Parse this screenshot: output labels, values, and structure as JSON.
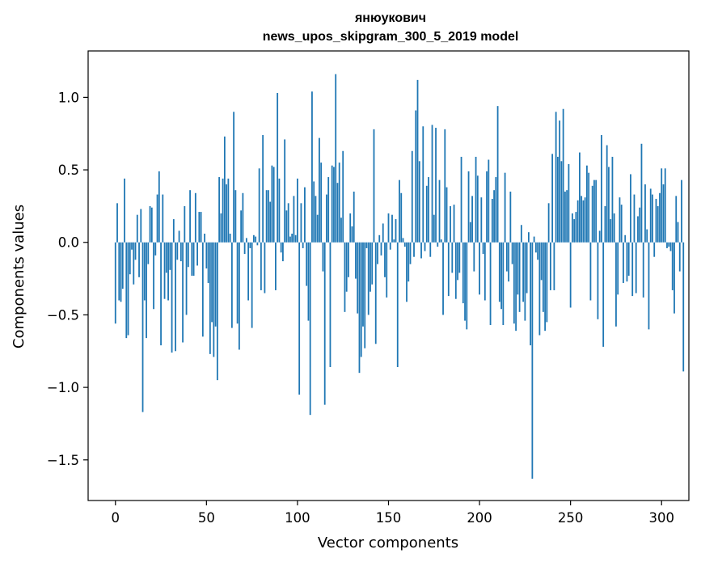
{
  "chart_data": {
    "type": "bar",
    "title": "янюукович",
    "subtitle": "news_upos_skipgram_300_5_2019 model",
    "xlabel": "Vector components",
    "ylabel": "Components values",
    "xlim": [
      -15,
      315
    ],
    "ylim": [
      -1.78,
      1.32
    ],
    "x_ticks": [
      0,
      50,
      100,
      150,
      200,
      250,
      300
    ],
    "x_tick_labels": [
      "0",
      "50",
      "100",
      "150",
      "200",
      "250",
      "300"
    ],
    "y_ticks": [
      -1.5,
      -1.0,
      -0.5,
      0.0,
      0.5,
      1.0
    ],
    "y_tick_labels": [
      "−1.5",
      "−1.0",
      "−0.5",
      "0.0",
      "0.5",
      "1.0"
    ],
    "grid": false,
    "legend": "none",
    "bar_color": "#1f77b4",
    "series": [
      {
        "values": [
          -0.56,
          0.27,
          -0.4,
          -0.41,
          -0.32,
          0.44,
          -0.66,
          -0.64,
          -0.22,
          -0.05,
          -0.29,
          -0.12,
          0.19,
          -0.24,
          0.23,
          -1.17,
          -0.4,
          -0.66,
          -0.15,
          0.25,
          0.24,
          -0.46,
          -0.09,
          0.33,
          0.49,
          -0.71,
          0.33,
          -0.39,
          -0.21,
          -0.4,
          -0.19,
          -0.76,
          0.16,
          -0.75,
          -0.12,
          0.08,
          -0.13,
          -0.69,
          0.25,
          -0.5,
          -0.17,
          0.36,
          -0.23,
          -0.23,
          0.34,
          -0.16,
          0.21,
          0.21,
          -0.65,
          0.06,
          -0.18,
          -0.28,
          -0.77,
          -0.55,
          -0.79,
          -0.58,
          -0.95,
          0.45,
          0.2,
          0.44,
          0.73,
          0.4,
          0.44,
          0.06,
          -0.59,
          0.9,
          0.36,
          -0.56,
          -0.74,
          0.22,
          0.34,
          -0.08,
          0.03,
          -0.4,
          -0.04,
          -0.59,
          0.05,
          0.04,
          -0.02,
          0.51,
          -0.33,
          0.74,
          -0.35,
          0.36,
          0.36,
          0.28,
          0.53,
          0.52,
          -0.33,
          1.03,
          0.44,
          -0.07,
          -0.13,
          0.71,
          0.22,
          0.27,
          0.04,
          0.06,
          0.32,
          0.05,
          0.44,
          -1.05,
          0.27,
          -0.04,
          0.38,
          -0.3,
          -0.54,
          -1.19,
          1.04,
          0.42,
          0.32,
          0.19,
          0.72,
          0.55,
          -0.2,
          -1.12,
          0.33,
          0.45,
          -0.86,
          0.53,
          0.52,
          1.16,
          0.41,
          0.55,
          0.17,
          0.63,
          -0.48,
          -0.34,
          -0.24,
          0.2,
          0.11,
          0.35,
          -0.25,
          -0.49,
          -0.9,
          -0.79,
          -0.58,
          -0.73,
          -0.04,
          -0.5,
          -0.34,
          -0.29,
          0.78,
          -0.7,
          -0.15,
          0.05,
          -0.09,
          0.13,
          -0.24,
          -0.38,
          0.2,
          -0.05,
          0.19,
          0.02,
          0.16,
          -0.86,
          0.43,
          0.34,
          0.03,
          -0.03,
          -0.41,
          -0.27,
          -0.15,
          0.63,
          -0.1,
          0.91,
          1.12,
          0.56,
          -0.11,
          0.8,
          -0.06,
          0.39,
          0.45,
          -0.1,
          0.81,
          0.19,
          0.79,
          -0.03,
          0.43,
          0.02,
          -0.5,
          0.78,
          0.38,
          -0.37,
          0.25,
          -0.21,
          0.26,
          -0.39,
          -0.26,
          -0.21,
          0.59,
          -0.42,
          -0.54,
          -0.6,
          0.49,
          0.14,
          0.32,
          -0.2,
          0.59,
          0.46,
          -0.36,
          0.31,
          -0.08,
          -0.4,
          0.49,
          0.57,
          -0.57,
          0.3,
          0.36,
          0.45,
          0.94,
          -0.41,
          -0.46,
          -0.57,
          0.48,
          -0.2,
          -0.27,
          0.35,
          -0.15,
          -0.56,
          -0.61,
          -0.36,
          -0.48,
          0.12,
          -0.41,
          -0.54,
          -0.35,
          0.07,
          -0.71,
          -1.63,
          0.04,
          -0.07,
          -0.12,
          -0.64,
          -0.26,
          -0.48,
          -0.61,
          -0.55,
          0.27,
          -0.33,
          0.61,
          -0.33,
          0.9,
          0.59,
          0.84,
          0.56,
          0.92,
          0.35,
          0.36,
          0.54,
          -0.45,
          0.2,
          0.16,
          0.21,
          0.29,
          0.62,
          0.32,
          0.29,
          0.31,
          0.53,
          0.48,
          -0.4,
          0.39,
          0.43,
          0.43,
          -0.53,
          0.08,
          0.74,
          -0.72,
          0.25,
          0.67,
          0.52,
          0.16,
          0.59,
          0.2,
          -0.58,
          -0.36,
          0.31,
          0.26,
          -0.28,
          0.05,
          -0.27,
          -0.23,
          0.47,
          -0.37,
          0.33,
          -0.35,
          0.18,
          0.24,
          0.68,
          -0.38,
          0.4,
          0.09,
          -0.6,
          0.37,
          0.33,
          -0.1,
          0.3,
          0.25,
          0.34,
          0.51,
          0.4,
          0.51,
          -0.04,
          -0.03,
          -0.06,
          -0.33,
          -0.49,
          0.32,
          0.14,
          -0.2,
          0.43,
          -0.89
        ]
      }
    ]
  }
}
